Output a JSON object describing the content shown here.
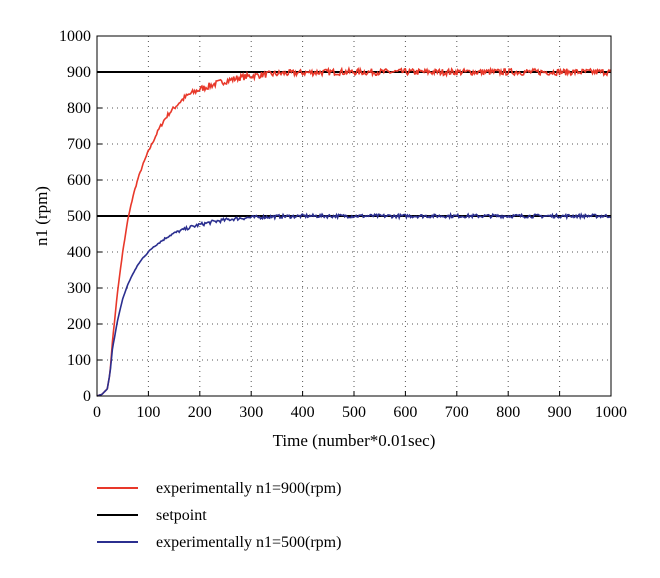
{
  "chart_data": {
    "type": "line",
    "xlabel": "Time (number*0.01sec)",
    "ylabel": "n1 (rpm)",
    "xlim": [
      0,
      1000
    ],
    "ylim": [
      0,
      1000
    ],
    "xticks": [
      0,
      100,
      200,
      300,
      400,
      500,
      600,
      700,
      800,
      900,
      1000
    ],
    "yticks": [
      0,
      100,
      200,
      300,
      400,
      500,
      600,
      700,
      800,
      900,
      1000
    ],
    "grid": true,
    "legend_position": "below-plot",
    "series": [
      {
        "name": "experimentally n1=900(rpm)",
        "color": "#e8382a",
        "x": [
          0,
          10,
          20,
          25,
          30,
          40,
          50,
          60,
          70,
          80,
          90,
          100,
          110,
          120,
          130,
          140,
          150,
          160,
          170,
          180,
          190,
          200,
          210,
          220,
          230,
          240,
          250,
          260,
          270,
          280,
          290,
          300,
          320,
          340,
          360,
          380,
          400,
          420,
          440,
          460,
          480,
          500,
          520,
          540,
          560,
          580,
          600,
          620,
          640,
          660,
          680,
          700,
          720,
          740,
          760,
          780,
          800,
          820,
          840,
          860,
          880,
          900,
          920,
          940,
          960,
          980,
          1000
        ],
        "values": [
          0,
          5,
          20,
          60,
          150,
          290,
          400,
          490,
          555,
          605,
          645,
          680,
          710,
          740,
          765,
          785,
          800,
          815,
          828,
          838,
          845,
          852,
          857,
          862,
          867,
          871,
          875,
          878,
          882,
          885,
          887,
          889,
          892,
          894,
          896,
          897,
          898,
          899,
          899,
          900,
          900,
          900,
          900,
          900,
          900,
          900,
          900,
          900,
          900,
          900,
          900,
          900,
          900,
          900,
          900,
          900,
          900,
          900,
          900,
          900,
          900,
          900,
          900,
          900,
          900,
          900,
          900
        ]
      },
      {
        "name": "setpoint",
        "color": "#000000",
        "segments": [
          {
            "x": [
              0,
              1000
            ],
            "values": [
              900,
              900
            ]
          },
          {
            "x": [
              0,
              1000
            ],
            "values": [
              500,
              500
            ]
          }
        ]
      },
      {
        "name": "experimentally n1=500(rpm)",
        "color": "#2b2f8f",
        "x": [
          0,
          10,
          20,
          25,
          30,
          40,
          50,
          60,
          70,
          80,
          90,
          100,
          110,
          120,
          130,
          140,
          150,
          160,
          170,
          180,
          190,
          200,
          210,
          220,
          230,
          240,
          250,
          260,
          280,
          300,
          320,
          340,
          360,
          380,
          400,
          420,
          440,
          460,
          480,
          500,
          520,
          540,
          560,
          580,
          600,
          620,
          640,
          660,
          680,
          700,
          720,
          740,
          760,
          780,
          800,
          820,
          840,
          860,
          880,
          900,
          920,
          940,
          960,
          980,
          1000
        ],
        "values": [
          0,
          5,
          20,
          60,
          130,
          210,
          270,
          310,
          340,
          365,
          385,
          400,
          415,
          425,
          435,
          445,
          452,
          458,
          463,
          468,
          472,
          476,
          479,
          482,
          485,
          487,
          489,
          491,
          494,
          496,
          497,
          498,
          499,
          499,
          500,
          500,
          500,
          500,
          500,
          500,
          500,
          500,
          500,
          500,
          500,
          500,
          500,
          500,
          500,
          500,
          500,
          500,
          500,
          500,
          500,
          500,
          500,
          500,
          500,
          500,
          500,
          500,
          500,
          500,
          500
        ]
      }
    ]
  }
}
